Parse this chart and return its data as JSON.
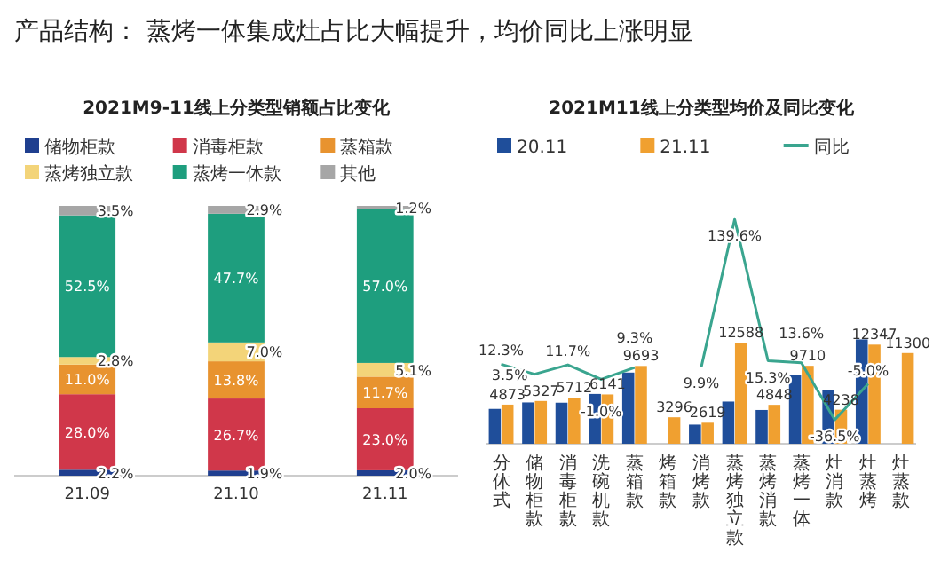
{
  "chart_data": [
    {
      "type": "bar",
      "title": "2021M9-11线上分类型销额占比变化",
      "annotations": [
        "产品结构：  蒸烤一体集成灶占比大幅提升，均价同比上涨明显"
      ],
      "categories": [
        "21.09",
        "21.10",
        "21.11"
      ],
      "stacked": true,
      "legend": "top",
      "series": [
        {
          "name": "储物柜款",
          "color": "#1f3f8f",
          "values": [
            2.2,
            1.9,
            2.0
          ],
          "value_labels": [
            "2.2%",
            "1.9%",
            "2.0%"
          ]
        },
        {
          "name": "消毒柜款",
          "color": "#d0374a",
          "values": [
            28.0,
            26.7,
            23.0
          ],
          "value_labels": [
            "28.0%",
            "26.7%",
            "23.0%"
          ]
        },
        {
          "name": "蒸箱款",
          "color": "#e8932f",
          "values": [
            11.0,
            13.8,
            11.7
          ],
          "value_labels": [
            "11.0%",
            "13.8%",
            "11.7%"
          ]
        },
        {
          "name": "蒸烤独立款",
          "color": "#f3d479",
          "values": [
            2.8,
            7.0,
            5.1
          ],
          "value_labels": [
            "2.8%",
            "7.0%",
            "5.1%"
          ]
        },
        {
          "name": "蒸烤一体款",
          "color": "#1e9e7e",
          "values": [
            52.5,
            47.7,
            57.0
          ],
          "value_labels": [
            "52.5%",
            "47.7%",
            "57.0%"
          ]
        },
        {
          "name": "其他",
          "color": "#a6a6a6",
          "values": [
            3.5,
            2.9,
            1.2
          ],
          "value_labels": [
            "3.5%",
            "2.9%",
            "1.2%"
          ]
        }
      ]
    },
    {
      "type": "bar",
      "title": "2021M11线上分类型均价及同比变化",
      "categories": [
        "分体式",
        "储物柜款",
        "消毒柜款",
        "洗碗机款",
        "蒸箱款",
        "烤箱款",
        "消烤款",
        "蒸烤独立款",
        "蒸烤消款",
        "蒸烤一体",
        "灶消款",
        "灶蒸烤",
        "灶蒸款"
      ],
      "tick_labels": "x",
      "legend": "top",
      "series": [
        {
          "name": "20.11",
          "color": "#1f4e9a",
          "values": [
            4340,
            5147,
            5114,
            6203,
            8868,
            null,
            2383,
            5255,
            4205,
            8548,
            6675,
            12997,
            null
          ]
        },
        {
          "name": "21.11",
          "color": "#f0a030",
          "values": [
            4873,
            5327,
            5712,
            6141,
            9693,
            3296,
            2619,
            12588,
            4848,
            9710,
            4238,
            12347,
            11300
          ],
          "value_labels": [
            "4873",
            "5327",
            "5712",
            "6141",
            "9693",
            "3296",
            "2619",
            "12588",
            "4848",
            "9710",
            "4238",
            "12347",
            "11300"
          ]
        },
        {
          "name": "同比",
          "type": "line",
          "axis": "y2",
          "color": "#3aa58f",
          "values": [
            12.3,
            3.5,
            11.7,
            -1.0,
            9.3,
            null,
            9.9,
            139.6,
            15.3,
            13.6,
            -36.5,
            -5.0,
            null
          ],
          "value_labels": [
            "12.3%",
            "3.5%",
            "11.7%",
            "-1.0%",
            "9.3%",
            null,
            "9.9%",
            "139.6%",
            "15.3%",
            "13.6%",
            "-36.5%",
            "-5.0%",
            null
          ]
        }
      ]
    }
  ]
}
